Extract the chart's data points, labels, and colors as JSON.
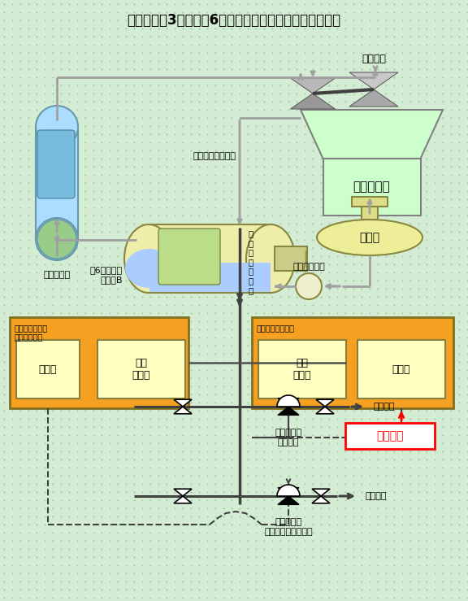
{
  "title": "伊方発電所3号機　第6高圧給水加熱器まわり概略系統図",
  "bg_color": "#d4ecd4",
  "pipe_color": "#a0a0a0",
  "pipe_lw": 2.0,
  "components": {
    "steam_gen_label": "蒸気発生器",
    "heater_label": "第6高圧給水\n加熱器B",
    "condenser_label": "復　水　器",
    "deaerator_label": "脱気器",
    "turbine_label": "タービン",
    "pump_label": "主給水ポンプ",
    "turb_exhaust_label": "タービン排気蒸気",
    "drain_label": "温\n水\n（\nド\nレ\nン\n）",
    "backup_label": "バックアップ用\n水位制御装置",
    "normal_label": "常用水位制御装置",
    "adj1_label": "調節器",
    "detect1_label": "水位\n検出器",
    "detect2_label": "水位\n検出器",
    "adj2_label": "調節器",
    "annotation_label": "当該箇所",
    "cv1_label": "水位制御弁\n（常用）",
    "cv2_label": "水位制御弁\n（バックアップ用）",
    "to_deaerator": "脱気器へ",
    "to_condenser": "復水器へ"
  }
}
